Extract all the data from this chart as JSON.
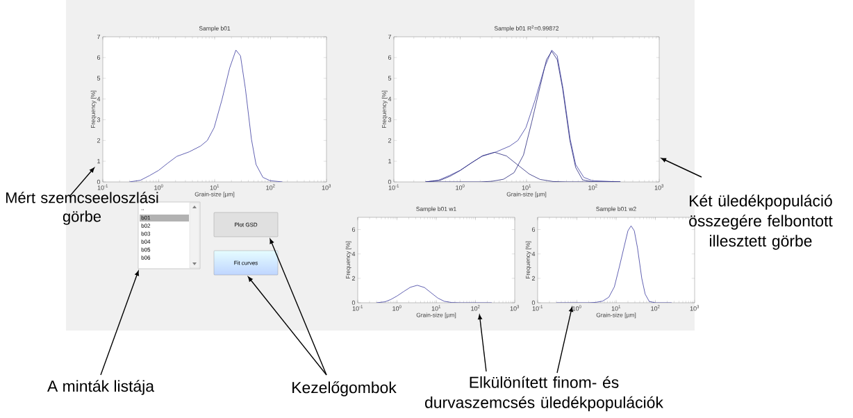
{
  "chart_data": [
    {
      "type": "line",
      "title": "Sample b01",
      "xlabel": "Grain-size [µm]",
      "ylabel": "Frequency [%]",
      "log": "x",
      "xlim": [
        0.1,
        1000
      ],
      "ylim": [
        0,
        7
      ],
      "xticks": [
        {
          "value": 0.1,
          "label": "10$^{-1}$"
        },
        {
          "value": 1,
          "label": "10$^{0}$"
        },
        {
          "value": 10,
          "label": "10$^{1}$"
        },
        {
          "value": 100,
          "label": "10$^{2}$"
        },
        {
          "value": 1000,
          "label": "10$^{3}$"
        }
      ],
      "yticks": [
        0,
        1,
        2,
        3,
        4,
        5,
        6,
        7
      ],
      "marker": "none",
      "line_style": "solid",
      "series": [
        {
          "color": "#3a3a9e",
          "x": [
            0.3,
            0.47,
            0.69,
            1,
            1.44,
            2.1,
            3.5,
            5.6,
            7.4,
            9.8,
            13.5,
            18.6,
            24,
            29,
            35.5,
            45.5,
            55,
            73,
            98,
            163
          ],
          "values": [
            0,
            0.08,
            0.31,
            0.56,
            0.9,
            1.23,
            1.45,
            1.73,
            2.0,
            2.62,
            3.96,
            5.5,
            6.36,
            6.08,
            4.5,
            2.06,
            0.84,
            0.22,
            0.06,
            0
          ]
        }
      ]
    },
    {
      "type": "line",
      "title": "Sample b01  R$^{2}$=0.99872",
      "xlabel": "Grain-size [µm]",
      "ylabel": "Frequency [%]",
      "log": "x",
      "xlim": [
        0.1,
        1000
      ],
      "ylim": [
        0,
        7
      ],
      "xticks": [
        {
          "value": 0.1,
          "label": "10$^{-1}$"
        },
        {
          "value": 1,
          "label": "10$^{0}$"
        },
        {
          "value": 10,
          "label": "10$^{1}$"
        },
        {
          "value": 100,
          "label": "10$^{2}$"
        },
        {
          "value": 1000,
          "label": "10$^{3}$"
        }
      ],
      "yticks": [
        0,
        1,
        2,
        3,
        4,
        5,
        6,
        7
      ],
      "marker": "none",
      "line_style": "solid",
      "series": [
        {
          "color": "#3a3a9e",
          "x": [
            0.3,
            0.47,
            0.69,
            1,
            1.44,
            2.1,
            3.5,
            5.6,
            7.4,
            9.8,
            13.5,
            18.6,
            24,
            29,
            35.5,
            45.5,
            55,
            73,
            98,
            260
          ],
          "values": [
            0,
            0.08,
            0.31,
            0.56,
            0.9,
            1.23,
            1.45,
            1.73,
            2.0,
            2.62,
            3.96,
            5.5,
            6.36,
            6.08,
            4.5,
            2.06,
            0.84,
            0.22,
            0.06,
            0
          ]
        },
        {
          "color": "#24247a",
          "x": [
            0.3,
            0.5,
            0.7,
            1,
            1.5,
            2.2,
            3.3,
            5,
            7.5,
            11,
            16,
            25,
            40,
            100,
            260
          ],
          "values": [
            0,
            0.08,
            0.27,
            0.55,
            0.93,
            1.27,
            1.43,
            1.25,
            0.8,
            0.38,
            0.12,
            0.02,
            0,
            0,
            0
          ]
        },
        {
          "color": "#24247a",
          "x": [
            0.3,
            2,
            3,
            4.5,
            6.5,
            9,
            12,
            16,
            20,
            24,
            29,
            35,
            45,
            55,
            70,
            100,
            260
          ],
          "values": [
            0,
            0,
            0.03,
            0.13,
            0.45,
            1.3,
            2.9,
            4.6,
            5.9,
            6.3,
            5.9,
            4.5,
            2.0,
            0.7,
            0.1,
            0,
            0
          ]
        }
      ]
    },
    {
      "type": "line",
      "title": "Sample b01 w1",
      "xlabel": "Grain-size [µm]",
      "ylabel": "Frequency [%]",
      "log": "x",
      "xlim": [
        0.1,
        1000
      ],
      "ylim": [
        0,
        7
      ],
      "xticks": [
        {
          "value": 0.1,
          "label": "10$^{-1}$"
        },
        {
          "value": 1,
          "label": "10$^{0}$"
        },
        {
          "value": 10,
          "label": "10$^{1}$"
        },
        {
          "value": 100,
          "label": "10$^{2}$"
        },
        {
          "value": 1000,
          "label": "10$^{3}$"
        }
      ],
      "yticks": [
        0,
        2,
        4,
        6
      ],
      "marker": "none",
      "line_style": "solid",
      "series": [
        {
          "color": "#3a3a9e",
          "x": [
            0.3,
            0.5,
            0.7,
            1,
            1.5,
            2.2,
            3.3,
            5,
            7.5,
            11,
            16,
            25,
            40,
            100,
            260
          ],
          "values": [
            0,
            0.08,
            0.27,
            0.55,
            0.93,
            1.27,
            1.43,
            1.25,
            0.8,
            0.38,
            0.12,
            0.02,
            0,
            0,
            0
          ]
        }
      ]
    },
    {
      "type": "line",
      "title": "Sample b01 w2",
      "xlabel": "Grain-size [µm]",
      "ylabel": "Frequency [%]",
      "log": "x",
      "xlim": [
        0.1,
        1000
      ],
      "ylim": [
        0,
        7
      ],
      "xticks": [
        {
          "value": 0.1,
          "label": "10$^{-1}$"
        },
        {
          "value": 1,
          "label": "10$^{0}$"
        },
        {
          "value": 10,
          "label": "10$^{1}$"
        },
        {
          "value": 100,
          "label": "10$^{2}$"
        },
        {
          "value": 1000,
          "label": "10$^{3}$"
        }
      ],
      "yticks": [
        0,
        2,
        4,
        6
      ],
      "marker": "none",
      "line_style": "solid",
      "series": [
        {
          "color": "#3a3a9e",
          "x": [
            0.3,
            2,
            3,
            4.5,
            6.5,
            9,
            12,
            16,
            20,
            24,
            29,
            35,
            45,
            55,
            70,
            100,
            260
          ],
          "values": [
            0,
            0,
            0.03,
            0.13,
            0.45,
            1.3,
            2.9,
            4.6,
            5.9,
            6.3,
            5.9,
            4.5,
            2.0,
            0.7,
            0.1,
            0,
            0
          ]
        }
      ]
    },
    {
      "type": "other",
      "annotations": [
        "..",
        "b01",
        "b02",
        "b03",
        "b04",
        "b05",
        "b06",
        "Plot GSD",
        "Fit curves",
        "Mért szemcseeloszlási görbe",
        "Két üledékpopuláció összegére felbontott illesztett görbe",
        "A minták listája",
        "Kezelőgombok",
        "Elkülönített finom- és durvaszemcsés üledékpopulációk"
      ]
    }
  ]
}
